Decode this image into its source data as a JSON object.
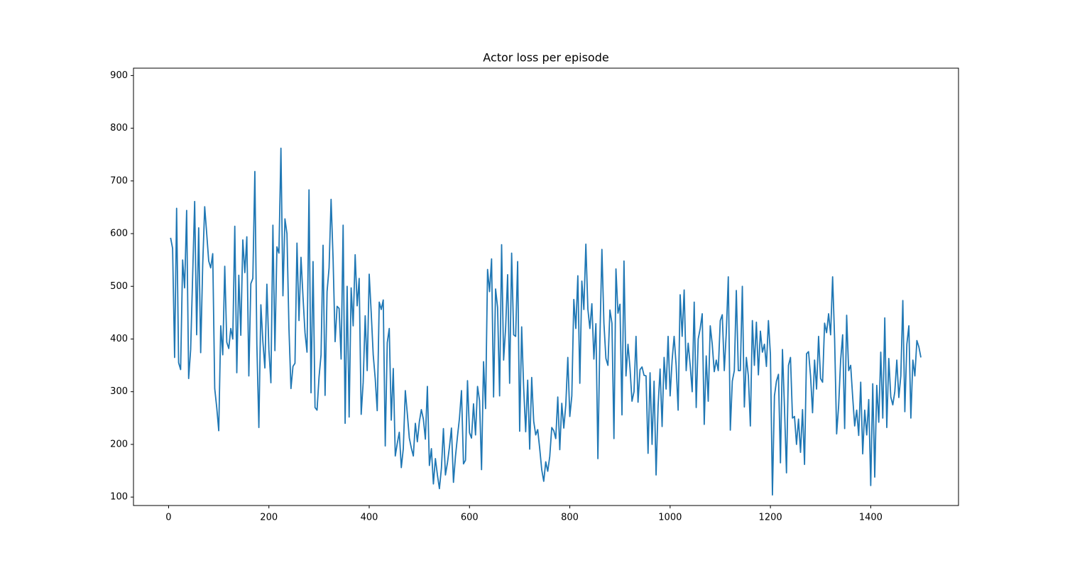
{
  "chart_data": {
    "type": "line",
    "title": "Actor loss per episode",
    "color": "#1f77b4",
    "xlim": [
      -70,
      1575
    ],
    "ylim": [
      84,
      914
    ],
    "xticks": [
      0,
      200,
      400,
      600,
      800,
      1000,
      1200,
      1400
    ],
    "yticks": [
      100,
      200,
      300,
      400,
      500,
      600,
      700,
      800,
      900
    ],
    "x": [
      4,
      8,
      12,
      16,
      20,
      24,
      28,
      32,
      36,
      40,
      44,
      48,
      52,
      56,
      60,
      64,
      68,
      72,
      76,
      80,
      84,
      88,
      92,
      96,
      100,
      104,
      108,
      112,
      116,
      120,
      124,
      128,
      132,
      136,
      140,
      144,
      148,
      152,
      156,
      160,
      164,
      168,
      172,
      176,
      180,
      184,
      188,
      192,
      196,
      200,
      204,
      208,
      212,
      216,
      220,
      224,
      228,
      232,
      236,
      240,
      244,
      248,
      252,
      256,
      260,
      264,
      268,
      272,
      276,
      280,
      284,
      288,
      292,
      296,
      300,
      304,
      308,
      312,
      316,
      320,
      324,
      328,
      332,
      336,
      340,
      344,
      348,
      352,
      356,
      360,
      364,
      368,
      372,
      376,
      380,
      384,
      388,
      392,
      396,
      400,
      404,
      408,
      412,
      416,
      420,
      424,
      428,
      432,
      436,
      440,
      444,
      448,
      452,
      456,
      460,
      464,
      468,
      472,
      476,
      480,
      484,
      488,
      492,
      496,
      500,
      504,
      508,
      512,
      516,
      520,
      524,
      528,
      532,
      536,
      540,
      544,
      548,
      552,
      556,
      560,
      564,
      568,
      572,
      576,
      580,
      584,
      588,
      592,
      596,
      600,
      604,
      608,
      612,
      616,
      620,
      624,
      628,
      632,
      636,
      640,
      644,
      648,
      652,
      656,
      660,
      664,
      668,
      672,
      676,
      680,
      684,
      688,
      692,
      696,
      700,
      704,
      708,
      712,
      716,
      720,
      724,
      728,
      732,
      736,
      740,
      744,
      748,
      752,
      756,
      760,
      764,
      768,
      772,
      776,
      780,
      784,
      788,
      792,
      796,
      800,
      804,
      808,
      812,
      816,
      820,
      824,
      828,
      832,
      836,
      840,
      844,
      848,
      852,
      856,
      860,
      864,
      868,
      872,
      876,
      880,
      884,
      888,
      892,
      896,
      900,
      904,
      908,
      912,
      916,
      920,
      924,
      928,
      932,
      936,
      940,
      944,
      948,
      952,
      956,
      960,
      964,
      968,
      972,
      976,
      980,
      984,
      988,
      992,
      996,
      1000,
      1004,
      1008,
      1012,
      1016,
      1020,
      1024,
      1028,
      1032,
      1036,
      1040,
      1044,
      1048,
      1052,
      1056,
      1060,
      1064,
      1068,
      1072,
      1076,
      1080,
      1084,
      1088,
      1092,
      1096,
      1100,
      1104,
      1108,
      1112,
      1116,
      1120,
      1124,
      1128,
      1132,
      1136,
      1140,
      1144,
      1148,
      1152,
      1156,
      1160,
      1164,
      1168,
      1172,
      1176,
      1180,
      1184,
      1188,
      1192,
      1196,
      1200,
      1204,
      1208,
      1212,
      1216,
      1220,
      1224,
      1228,
      1232,
      1236,
      1240,
      1244,
      1248,
      1252,
      1256,
      1260,
      1264,
      1268,
      1272,
      1276,
      1280,
      1284,
      1288,
      1292,
      1296,
      1300,
      1304,
      1308,
      1312,
      1316,
      1320,
      1324,
      1328,
      1332,
      1336,
      1340,
      1344,
      1348,
      1352,
      1356,
      1360,
      1364,
      1368,
      1372,
      1376,
      1380,
      1384,
      1388,
      1392,
      1396,
      1400,
      1404,
      1408,
      1412,
      1416,
      1420,
      1424,
      1428,
      1432,
      1436,
      1440,
      1444,
      1448,
      1452,
      1456,
      1460,
      1464,
      1468,
      1472,
      1476,
      1480,
      1484,
      1488,
      1492,
      1496,
      1500
    ],
    "values": [
      592,
      572,
      365,
      648,
      355,
      342,
      550,
      497,
      644,
      325,
      380,
      520,
      661,
      408,
      611,
      374,
      540,
      651,
      600,
      548,
      535,
      562,
      306,
      270,
      226,
      425,
      370,
      538,
      394,
      382,
      420,
      400,
      614,
      336,
      521,
      407,
      588,
      526,
      594,
      330,
      505,
      515,
      718,
      390,
      232,
      465,
      395,
      345,
      504,
      380,
      317,
      616,
      378,
      575,
      563,
      762,
      482,
      628,
      600,
      420,
      306,
      348,
      354,
      582,
      435,
      555,
      480,
      412,
      375,
      683,
      298,
      547,
      270,
      265,
      328,
      370,
      578,
      293,
      490,
      535,
      665,
      552,
      395,
      462,
      458,
      362,
      616,
      240,
      500,
      252,
      497,
      425,
      560,
      463,
      515,
      257,
      318,
      444,
      340,
      523,
      450,
      370,
      325,
      264,
      470,
      456,
      474,
      197,
      393,
      420,
      246,
      344,
      178,
      202,
      223,
      156,
      192,
      302,
      258,
      212,
      193,
      178,
      240,
      205,
      243,
      266,
      248,
      210,
      310,
      160,
      192,
      125,
      173,
      142,
      116,
      155,
      230,
      142,
      165,
      195,
      231,
      128,
      177,
      215,
      250,
      302,
      163,
      170,
      321,
      222,
      212,
      277,
      218,
      310,
      283,
      152,
      357,
      268,
      532,
      490,
      552,
      290,
      495,
      460,
      292,
      579,
      360,
      420,
      522,
      316,
      563,
      408,
      405,
      547,
      225,
      423,
      307,
      224,
      322,
      191,
      327,
      244,
      218,
      228,
      192,
      152,
      130,
      167,
      149,
      177,
      232,
      226,
      211,
      290,
      190,
      278,
      231,
      275,
      365,
      253,
      292,
      475,
      420,
      520,
      316,
      510,
      456,
      580,
      457,
      420,
      467,
      362,
      429,
      173,
      400,
      570,
      430,
      363,
      350,
      455,
      430,
      211,
      533,
      449,
      466,
      256,
      548,
      330,
      390,
      345,
      282,
      300,
      405,
      280,
      342,
      347,
      331,
      330,
      183,
      336,
      200,
      320,
      142,
      272,
      343,
      234,
      365,
      305,
      405,
      292,
      360,
      405,
      350,
      265,
      484,
      405,
      493,
      340,
      392,
      350,
      300,
      470,
      270,
      400,
      420,
      448,
      238,
      368,
      282,
      425,
      390,
      338,
      360,
      340,
      435,
      446,
      340,
      412,
      518,
      227,
      320,
      340,
      492,
      340,
      340,
      500,
      271,
      365,
      330,
      235,
      435,
      350,
      432,
      332,
      415,
      375,
      390,
      348,
      435,
      370,
      104,
      292,
      320,
      333,
      165,
      380,
      270,
      146,
      350,
      365,
      250,
      253,
      200,
      248,
      185,
      266,
      162,
      372,
      376,
      330,
      260,
      360,
      305,
      405,
      325,
      318,
      430,
      412,
      448,
      408,
      518,
      400,
      220,
      273,
      360,
      408,
      230,
      445,
      340,
      350,
      290,
      235,
      265,
      217,
      318,
      182,
      265,
      218,
      285,
      122,
      315,
      138,
      312,
      242,
      375,
      250,
      440,
      232,
      363,
      290,
      275,
      300,
      360,
      289,
      330,
      473,
      262,
      390,
      425,
      250,
      360,
      330,
      397,
      385,
      365
    ]
  }
}
